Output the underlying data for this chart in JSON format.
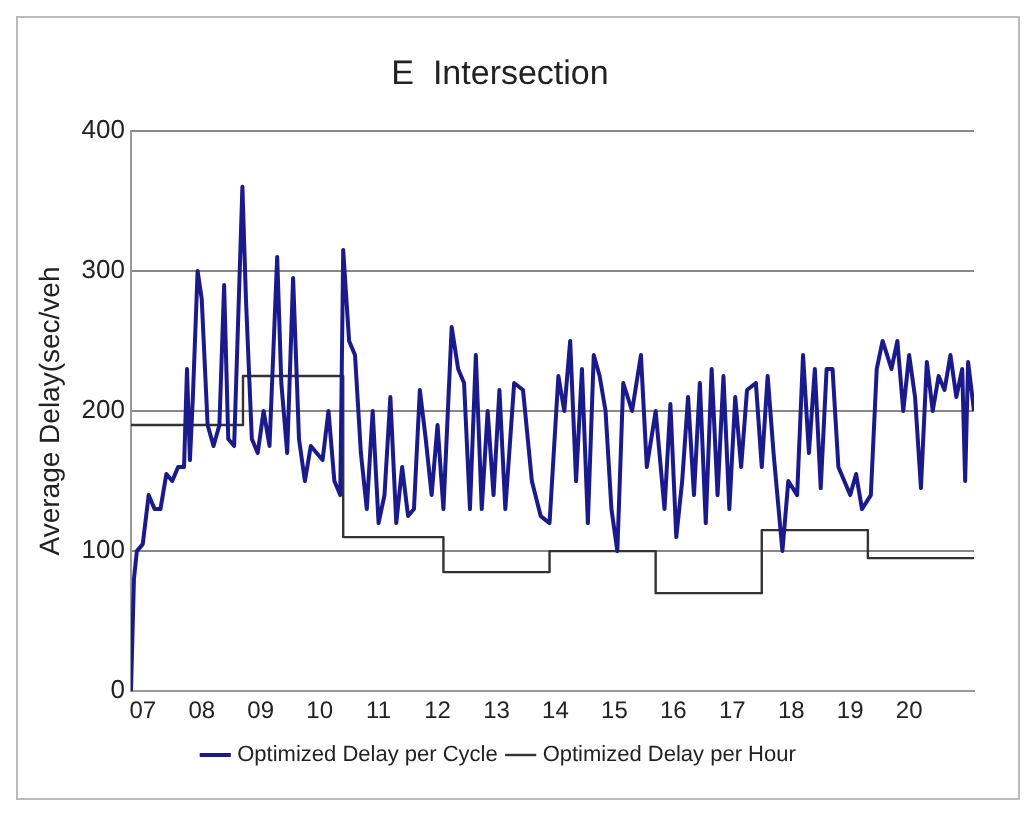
{
  "chart_data": {
    "type": "line",
    "title": "E  Intersection",
    "ylabel": "Average Delay(sec/veh",
    "xlim": [
      6.8,
      21.1
    ],
    "ylim": [
      0,
      400
    ],
    "yticks": [
      0,
      100,
      200,
      300,
      400
    ],
    "xticks": [
      {
        "value": 7,
        "label": "07"
      },
      {
        "value": 8,
        "label": "08"
      },
      {
        "value": 9,
        "label": "09"
      },
      {
        "value": 10,
        "label": "10"
      },
      {
        "value": 11,
        "label": "11"
      },
      {
        "value": 12,
        "label": "12"
      },
      {
        "value": 13,
        "label": "13"
      },
      {
        "value": 14,
        "label": "14"
      },
      {
        "value": 15,
        "label": "15"
      },
      {
        "value": 16,
        "label": "16"
      },
      {
        "value": 17,
        "label": "17"
      },
      {
        "value": 18,
        "label": "18"
      },
      {
        "value": 19,
        "label": "19"
      },
      {
        "value": 20,
        "label": "20"
      }
    ],
    "grid": "y",
    "legend": "bottom",
    "marker": "none",
    "series": [
      {
        "name": "Optimized Delay per Cycle",
        "color": "#1a1a8c",
        "type": "line",
        "x": [
          6.8,
          6.85,
          6.9,
          7.0,
          7.1,
          7.2,
          7.3,
          7.4,
          7.5,
          7.6,
          7.7,
          7.75,
          7.8,
          7.85,
          7.93,
          8.0,
          8.1,
          8.2,
          8.3,
          8.38,
          8.45,
          8.55,
          8.69,
          8.75,
          8.85,
          8.95,
          9.05,
          9.15,
          9.28,
          9.35,
          9.45,
          9.55,
          9.65,
          9.75,
          9.85,
          9.95,
          10.05,
          10.15,
          10.25,
          10.35,
          10.4,
          10.5,
          10.6,
          10.7,
          10.8,
          10.9,
          11.0,
          11.1,
          11.2,
          11.3,
          11.4,
          11.5,
          11.6,
          11.7,
          11.8,
          11.9,
          12.0,
          12.1,
          12.24,
          12.35,
          12.45,
          12.55,
          12.65,
          12.75,
          12.85,
          12.95,
          13.05,
          13.15,
          13.3,
          13.45,
          13.6,
          13.75,
          13.9,
          14.05,
          14.15,
          14.25,
          14.35,
          14.45,
          14.55,
          14.65,
          14.75,
          14.85,
          14.95,
          15.05,
          15.15,
          15.3,
          15.45,
          15.55,
          15.7,
          15.85,
          15.95,
          16.05,
          16.15,
          16.25,
          16.35,
          16.45,
          16.55,
          16.65,
          16.75,
          16.85,
          16.95,
          17.05,
          17.15,
          17.25,
          17.4,
          17.5,
          17.6,
          17.7,
          17.85,
          17.95,
          18.1,
          18.2,
          18.3,
          18.4,
          18.5,
          18.6,
          18.7,
          18.8,
          18.9,
          19.0,
          19.1,
          19.2,
          19.35,
          19.45,
          19.55,
          19.7,
          19.8,
          19.9,
          20.0,
          20.1,
          20.2,
          20.3,
          20.4,
          20.5,
          20.6,
          20.7,
          20.8,
          20.9,
          20.95,
          21.0,
          21.1
        ],
        "values": [
          0,
          80,
          100,
          105,
          140,
          130,
          130,
          155,
          150,
          160,
          160,
          230,
          165,
          210,
          300,
          280,
          190,
          175,
          190,
          290,
          180,
          175,
          360,
          280,
          180,
          170,
          200,
          175,
          310,
          220,
          170,
          295,
          180,
          150,
          175,
          170,
          165,
          200,
          150,
          140,
          315,
          250,
          240,
          170,
          130,
          200,
          120,
          140,
          210,
          120,
          160,
          125,
          130,
          215,
          180,
          140,
          190,
          130,
          260,
          230,
          220,
          130,
          240,
          130,
          200,
          140,
          215,
          130,
          220,
          215,
          150,
          125,
          120,
          225,
          200,
          250,
          150,
          230,
          120,
          240,
          225,
          200,
          130,
          100,
          220,
          200,
          240,
          160,
          200,
          130,
          205,
          110,
          150,
          210,
          140,
          220,
          120,
          230,
          140,
          225,
          130,
          210,
          160,
          215,
          220,
          160,
          225,
          170,
          100,
          150,
          140,
          240,
          170,
          230,
          145,
          230,
          230,
          160,
          150,
          140,
          155,
          130,
          140,
          230,
          250,
          230,
          250,
          200,
          240,
          210,
          145,
          235,
          200,
          225,
          215,
          240,
          210,
          230,
          150,
          235,
          200
        ]
      },
      {
        "name": "Optimized Delay per Hour",
        "color": "#333333",
        "type": "step",
        "x": [
          6.8,
          8.7,
          10.4,
          12.1,
          13.9,
          15.7,
          17.5,
          19.3,
          21.1
        ],
        "values": [
          190,
          225,
          110,
          85,
          100,
          70,
          115,
          95,
          95
        ]
      }
    ]
  }
}
